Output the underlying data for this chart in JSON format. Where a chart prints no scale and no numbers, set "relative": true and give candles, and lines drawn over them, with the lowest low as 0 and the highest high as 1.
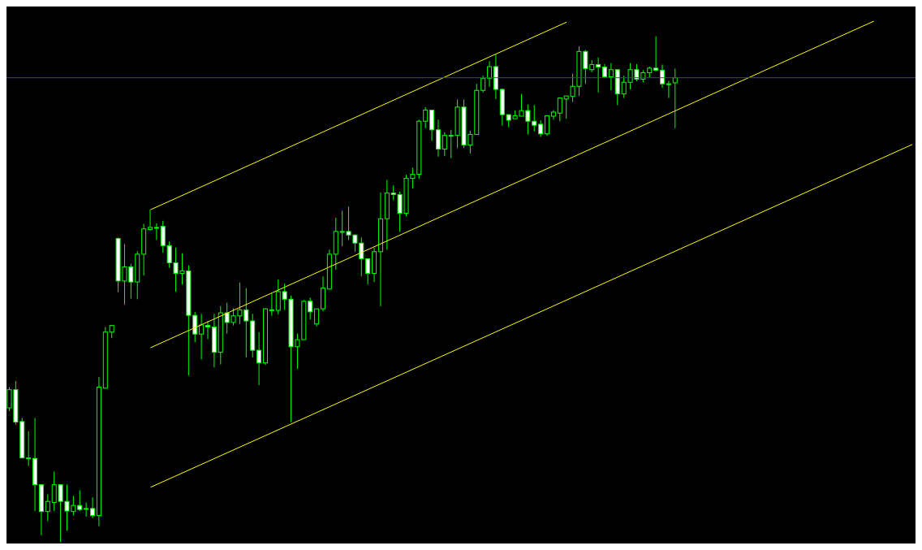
{
  "chart_data": {
    "type": "candlestick",
    "relative": true,
    "tick_labels": false,
    "color": "#00ff00",
    "categories": [
      null,
      null,
      null,
      null,
      null,
      null,
      null,
      null,
      null,
      null,
      null,
      null,
      null,
      null,
      null,
      null,
      null,
      null,
      null,
      null,
      null,
      null,
      null,
      null,
      null,
      null,
      null,
      null,
      null,
      null,
      null,
      null,
      null,
      null,
      null,
      null,
      null,
      null,
      null,
      null,
      null,
      null,
      null,
      null,
      null,
      null,
      null,
      null,
      null,
      null,
      null,
      null,
      null,
      null,
      null,
      null,
      null,
      null,
      null,
      null,
      null,
      null,
      null,
      null,
      null,
      null,
      null,
      null,
      null,
      null,
      null,
      null,
      null,
      null,
      null,
      null,
      null,
      null,
      null,
      null,
      null,
      null,
      null,
      null,
      null,
      null,
      null,
      null,
      null,
      null,
      null,
      null,
      null,
      null,
      null,
      null,
      null,
      null,
      null,
      null,
      null,
      null,
      null,
      null,
      null,
      null,
      null,
      null,
      null,
      null,
      null,
      null,
      null,
      null,
      null,
      null,
      null,
      null,
      null,
      null,
      null,
      null,
      null,
      null,
      null,
      null,
      null,
      null,
      null,
      null,
      null,
      null,
      null,
      null,
      null,
      null,
      null,
      null,
      null,
      null,
      null,
      null
    ],
    "ohlc": [
      [
        0.265,
        0.306,
        0.259,
        0.301
      ],
      [
        0.301,
        0.318,
        0.232,
        0.237
      ],
      [
        0.238,
        0.245,
        0.166,
        0.166
      ],
      [
        0.166,
        0.219,
        0.15,
        0.166
      ],
      [
        0.165,
        0.245,
        0.061,
        0.113
      ],
      [
        0.113,
        0.113,
        0.013,
        0.06
      ],
      [
        0.06,
        0.094,
        0.041,
        0.08
      ],
      [
        0.078,
        0.139,
        0.061,
        0.113
      ],
      [
        0.113,
        0.113,
        0,
        0.08
      ],
      [
        0.08,
        0.113,
        0.022,
        0.061
      ],
      [
        0.06,
        0.091,
        0.052,
        0.072
      ],
      [
        0.072,
        0.102,
        0.061,
        0.064
      ],
      [
        0.066,
        0.078,
        0.05,
        0.066
      ],
      [
        0.066,
        0.088,
        0.047,
        0.052
      ],
      [
        0.052,
        0.326,
        0.031,
        0.306
      ],
      [
        0.304,
        0.425,
        0.304,
        0.415
      ],
      [
        0.415,
        0.428,
        0.403,
        0.428
      ],
      [
        0.6,
        0.602,
        0.494,
        0.516
      ],
      [
        0.516,
        0.589,
        0.47,
        0.544
      ],
      [
        0.544,
        0.55,
        0.481,
        0.514
      ],
      [
        0.514,
        0.575,
        0.48,
        0.569
      ],
      [
        0.569,
        0.629,
        0.527,
        0.619
      ],
      [
        0.618,
        0.657,
        0.616,
        0.622
      ],
      [
        0.622,
        0.63,
        0.597,
        0.622
      ],
      [
        0.624,
        0.635,
        0.572,
        0.586
      ],
      [
        0.586,
        0.594,
        0.542,
        0.552
      ],
      [
        0.552,
        0.582,
        0.495,
        0.531
      ],
      [
        0.531,
        0.571,
        0.509,
        0.536
      ],
      [
        0.536,
        0.547,
        0.329,
        0.448
      ],
      [
        0.448,
        0.455,
        0.395,
        0.411
      ],
      [
        0.411,
        0.451,
        0.361,
        0.429
      ],
      [
        0.428,
        0.437,
        0.401,
        0.425
      ],
      [
        0.425,
        0.451,
        0.345,
        0.375
      ],
      [
        0.375,
        0.466,
        0.351,
        0.453
      ],
      [
        0.453,
        0.473,
        0.412,
        0.434
      ],
      [
        0.434,
        0.462,
        0.428,
        0.447
      ],
      [
        0.447,
        0.513,
        0.431,
        0.459
      ],
      [
        0.459,
        0.502,
        0.365,
        0.437
      ],
      [
        0.437,
        0.451,
        0.365,
        0.379
      ],
      [
        0.379,
        0.415,
        0.31,
        0.354
      ],
      [
        0.354,
        0.462,
        0.35,
        0.461
      ],
      [
        0.459,
        0.491,
        0.447,
        0.459
      ],
      [
        0.458,
        0.519,
        0.45,
        0.495
      ],
      [
        0.495,
        0.511,
        0.459,
        0.48
      ],
      [
        0.48,
        0.487,
        0.237,
        0.386
      ],
      [
        0.386,
        0.412,
        0.342,
        0.4
      ],
      [
        0.4,
        0.478,
        0.4,
        0.476
      ],
      [
        0.476,
        0.483,
        0.44,
        0.455
      ],
      [
        0.431,
        0.461,
        0.426,
        0.461
      ],
      [
        0.461,
        0.525,
        0.456,
        0.502
      ],
      [
        0.5,
        0.578,
        0.5,
        0.569
      ],
      [
        0.569,
        0.641,
        0.538,
        0.614
      ],
      [
        0.614,
        0.655,
        0.585,
        0.614
      ],
      [
        0.614,
        0.663,
        0.597,
        0.607
      ],
      [
        0.607,
        0.608,
        0.574,
        0.591
      ],
      [
        0.591,
        0.602,
        0.525,
        0.56
      ],
      [
        0.56,
        0.56,
        0.509,
        0.531
      ],
      [
        0.531,
        0.582,
        0.514,
        0.574
      ],
      [
        0.574,
        0.691,
        0.466,
        0.639
      ],
      [
        0.639,
        0.716,
        0.578,
        0.69
      ],
      [
        0.69,
        0.705,
        0.676,
        0.687
      ],
      [
        0.687,
        0.693,
        0.613,
        0.65
      ],
      [
        0.65,
        0.726,
        0.644,
        0.719
      ],
      [
        0.719,
        0.74,
        0.699,
        0.727
      ],
      [
        0.727,
        0.835,
        0.718,
        0.832
      ],
      [
        0.832,
        0.86,
        0.818,
        0.854
      ],
      [
        0.854,
        0.854,
        0.793,
        0.815
      ],
      [
        0.815,
        0.835,
        0.762,
        0.777
      ],
      [
        0.777,
        0.81,
        0.763,
        0.804
      ],
      [
        0.804,
        0.815,
        0.759,
        0.804
      ],
      [
        0.804,
        0.875,
        0.779,
        0.86
      ],
      [
        0.86,
        0.875,
        0.779,
        0.785
      ],
      [
        0.785,
        0.813,
        0.768,
        0.806
      ],
      [
        0.806,
        0.906,
        0.806,
        0.893
      ],
      [
        0.893,
        0.922,
        0.889,
        0.917
      ],
      [
        0.917,
        0.951,
        0.9,
        0.94
      ],
      [
        0.94,
        0.964,
        0.876,
        0.895
      ],
      [
        0.895,
        0.897,
        0.823,
        0.845
      ],
      [
        0.845,
        0.845,
        0.82,
        0.834
      ],
      [
        0.837,
        0.853,
        0.837,
        0.843
      ],
      [
        0.842,
        0.886,
        0.842,
        0.853
      ],
      [
        0.853,
        0.865,
        0.806,
        0.832
      ],
      [
        0.832,
        0.864,
        0.812,
        0.824
      ],
      [
        0.826,
        0.834,
        0.801,
        0.807
      ],
      [
        0.807,
        0.843,
        0.803,
        0.843
      ],
      [
        0.842,
        0.854,
        0.835,
        0.85
      ],
      [
        0.848,
        0.878,
        0.832,
        0.878
      ],
      [
        0.876,
        0.882,
        0.837,
        0.882
      ],
      [
        0.881,
        0.926,
        0.87,
        0.901
      ],
      [
        0.901,
        0.98,
        0.882,
        0.97
      ],
      [
        0.97,
        0.973,
        0.906,
        0.936
      ],
      [
        0.934,
        0.953,
        0.929,
        0.944
      ],
      [
        0.944,
        0.958,
        0.889,
        0.939
      ],
      [
        0.939,
        0.945,
        0.918,
        0.92
      ],
      [
        0.92,
        0.947,
        0.893,
        0.934
      ],
      [
        0.934,
        0.934,
        0.864,
        0.886
      ],
      [
        0.886,
        0.922,
        0.878,
        0.909
      ],
      [
        0.909,
        0.947,
        0.895,
        0.934
      ],
      [
        0.934,
        0.945,
        0.911,
        0.915
      ],
      [
        0.915,
        0.933,
        0.909,
        0.928
      ],
      [
        0.928,
        0.94,
        0.918,
        0.937
      ],
      [
        0.937,
        1.0,
        0.931,
        0.933
      ],
      [
        0.933,
        0.944,
        0.898,
        0.906
      ],
      [
        0.906,
        0.912,
        0.878,
        0.906
      ],
      [
        0.908,
        0.936,
        0.818,
        0.918
      ],
      null,
      null,
      null,
      null,
      null,
      null,
      null,
      null,
      null,
      null,
      null,
      null,
      null,
      null,
      null,
      null,
      null,
      null,
      null,
      null,
      null,
      null,
      null,
      null,
      null,
      null,
      null,
      null,
      null,
      null,
      null,
      null,
      null,
      null,
      null,
      null,
      null
    ],
    "colors": [
      "#000000",
      "#ffffff",
      "#ffffff",
      "#000000",
      "#ffffff",
      "#ffffff",
      "#000000",
      "#000000",
      "#ffffff",
      "#ffffff",
      "#000000",
      "#ffffff",
      "#000000",
      "#ffffff",
      "#000000",
      "#000000",
      "#000000",
      "#ffffff",
      "#000000",
      "#ffffff",
      "#000000",
      "#000000",
      "#000000",
      "#000000",
      "#ffffff",
      "#ffffff",
      "#ffffff",
      "#000000",
      "#ffffff",
      "#ffffff",
      "#000000",
      "#ffffff",
      "#ffffff",
      "#000000",
      "#ffffff",
      "#000000",
      "#000000",
      "#ffffff",
      "#ffffff",
      "#ffffff",
      "#000000",
      "#000000",
      "#000000",
      "#ffffff",
      "#ffffff",
      "#000000",
      "#000000",
      "#ffffff",
      "#000000",
      "#000000",
      "#000000",
      "#000000",
      "#000000",
      "#ffffff",
      "#ffffff",
      "#ffffff",
      "#ffffff",
      "#000000",
      "#000000",
      "#000000",
      "#ffffff",
      "#ffffff",
      "#000000",
      "#000000",
      "#000000",
      "#000000",
      "#ffffff",
      "#ffffff",
      "#000000",
      "#000000",
      "#000000",
      "#ffffff",
      "#000000",
      "#000000",
      "#000000",
      "#000000",
      "#ffffff",
      "#ffffff",
      "#ffffff",
      "#000000",
      "#000000",
      "#ffffff",
      "#ffffff",
      "#ffffff",
      "#000000",
      "#000000",
      "#000000",
      "#000000",
      "#000000",
      "#000000",
      "#ffffff",
      "#000000",
      "#ffffff",
      "#ffffff",
      "#000000",
      "#ffffff",
      "#000000",
      "#000000",
      "#ffffff",
      "#000000",
      "#000000",
      "#ffffff",
      "#ffffff",
      "#000000",
      "#000000",
      null,
      null,
      null,
      null,
      null,
      null,
      null,
      null,
      null,
      null,
      null,
      null,
      null,
      null,
      null,
      null,
      null,
      null,
      null,
      null,
      null,
      null,
      null,
      null,
      null,
      null,
      null,
      null,
      null,
      null,
      null,
      null,
      null,
      null,
      null,
      null,
      null
    ],
    "series": [
      {
        "type": "line",
        "color": "#ffff00",
        "values": [
          null,
          null,
          null,
          null,
          null,
          null,
          null,
          null,
          null,
          null,
          null,
          null,
          null,
          null,
          null,
          null,
          null,
          null,
          null,
          null,
          null,
          null,
          0.657,
          null,
          null,
          null,
          null,
          null,
          null,
          null,
          null,
          null,
          null,
          null,
          null,
          null,
          null,
          null,
          null,
          null,
          null,
          null,
          null,
          null,
          null,
          null,
          null,
          null,
          null,
          null,
          null,
          null,
          null,
          null,
          null,
          null,
          null,
          null,
          null,
          null,
          null,
          null,
          null,
          null,
          null,
          null,
          null,
          null,
          null,
          null,
          null,
          null,
          null,
          null,
          null,
          null,
          null,
          null,
          null,
          null,
          null,
          null,
          null,
          null,
          null,
          null,
          null,
          1.028,
          null,
          null,
          null,
          null,
          null,
          null,
          null,
          null,
          null,
          null,
          null,
          null,
          null,
          null,
          null,
          null,
          null,
          null,
          null,
          null,
          null,
          null,
          null,
          null,
          null,
          null,
          null,
          null,
          null,
          null,
          null,
          null,
          null,
          null,
          null,
          null,
          null,
          null,
          null,
          null,
          null,
          null,
          null,
          null,
          null,
          null,
          null,
          null,
          null,
          null,
          null,
          null,
          null,
          null
        ]
      },
      {
        "type": "line",
        "color": "#ffff00",
        "values": [
          null,
          null,
          null,
          null,
          null,
          null,
          null,
          null,
          null,
          null,
          null,
          null,
          null,
          null,
          null,
          null,
          null,
          null,
          null,
          null,
          null,
          null,
          0.384,
          null,
          null,
          null,
          null,
          null,
          null,
          null,
          null,
          null,
          null,
          null,
          null,
          null,
          null,
          null,
          null,
          null,
          null,
          null,
          null,
          null,
          null,
          null,
          null,
          null,
          null,
          null,
          null,
          null,
          null,
          null,
          null,
          null,
          null,
          null,
          null,
          null,
          null,
          null,
          null,
          null,
          null,
          null,
          null,
          null,
          null,
          null,
          null,
          null,
          null,
          null,
          null,
          null,
          null,
          null,
          null,
          null,
          null,
          null,
          null,
          null,
          null,
          null,
          null,
          null,
          null,
          null,
          null,
          null,
          null,
          null,
          null,
          null,
          null,
          null,
          null,
          null,
          null,
          null,
          null,
          null,
          null,
          null,
          null,
          null,
          null,
          null,
          null,
          null,
          null,
          null,
          null,
          null,
          null,
          null,
          null,
          null,
          null,
          null,
          null,
          null,
          null,
          null,
          null,
          null,
          null,
          null,
          null,
          null,
          null,
          null,
          null,
          1.03,
          null,
          null,
          null,
          null,
          null,
          null
        ]
      },
      {
        "type": "line",
        "color": "#ffff00",
        "values": [
          null,
          null,
          null,
          null,
          null,
          null,
          null,
          null,
          null,
          null,
          null,
          null,
          null,
          null,
          null,
          null,
          null,
          null,
          null,
          null,
          null,
          null,
          0.108,
          null,
          null,
          null,
          null,
          null,
          null,
          null,
          null,
          null,
          null,
          null,
          null,
          null,
          null,
          null,
          null,
          null,
          null,
          null,
          null,
          null,
          null,
          null,
          null,
          null,
          null,
          null,
          null,
          null,
          null,
          null,
          null,
          null,
          null,
          null,
          null,
          null,
          null,
          null,
          null,
          null,
          null,
          null,
          null,
          null,
          null,
          null,
          null,
          null,
          null,
          null,
          null,
          null,
          null,
          null,
          null,
          null,
          null,
          null,
          null,
          null,
          null,
          null,
          null,
          null,
          null,
          null,
          null,
          null,
          null,
          null,
          null,
          null,
          null,
          null,
          null,
          null,
          null,
          null,
          null,
          null,
          null,
          null,
          null,
          null,
          null,
          null,
          null,
          null,
          null,
          null,
          null,
          null,
          null,
          null,
          null,
          null,
          null,
          null,
          null,
          null,
          null,
          null,
          null,
          null,
          null,
          null,
          null,
          null,
          null,
          null,
          null,
          null,
          null,
          null,
          null,
          null,
          null,
          0.786
        ]
      }
    ],
    "ref_lines": [
      {
        "axis": "y",
        "value": 0.918,
        "color": "#3c3cb4"
      }
    ]
  }
}
